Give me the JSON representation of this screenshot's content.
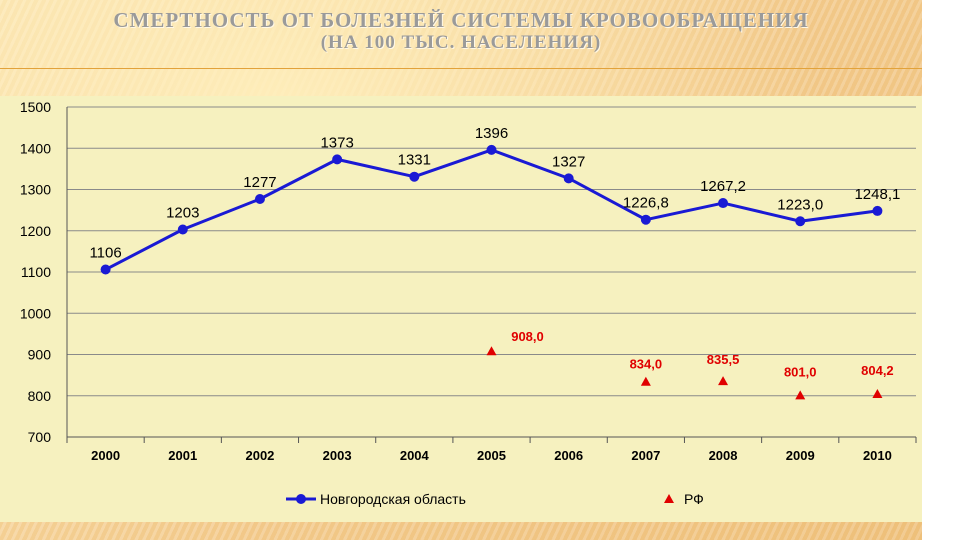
{
  "slide": {
    "title_line1": "СМЕРТНОСТЬ ОТ БОЛЕЗНЕЙ СИСТЕМЫ КРОВООБРАЩЕНИЯ",
    "title_line2": "(НА 100 ТЫС. НАСЕЛЕНИЯ)"
  },
  "chart_data": {
    "type": "line",
    "x": [
      "2000",
      "2001",
      "2002",
      "2003",
      "2004",
      "2005",
      "2006",
      "2007",
      "2008",
      "2009",
      "2010"
    ],
    "ylim": [
      700,
      1500
    ],
    "yticks": [
      "700",
      "800",
      "900",
      "1000",
      "1100",
      "1200",
      "1300",
      "1400",
      "1500"
    ],
    "grid": true,
    "legend_position": "bottom",
    "series": [
      {
        "name": "Новгородская область",
        "marker": "circle",
        "color": "#1a1ad4",
        "values": [
          1106,
          1203,
          1277,
          1373,
          1331,
          1396,
          1327,
          1226.8,
          1267.2,
          1223.0,
          1248.1
        ],
        "labels": [
          "1106",
          "1203",
          "1277",
          "1373",
          "1331",
          "1396",
          "1327",
          "1226,8",
          "1267,2",
          "1223,0",
          "1248,1"
        ]
      },
      {
        "name": "РФ",
        "marker": "triangle",
        "color": "#e00000",
        "values": [
          null,
          null,
          null,
          null,
          null,
          908.0,
          null,
          834.0,
          835.5,
          801.0,
          804.2
        ],
        "labels": [
          null,
          null,
          null,
          null,
          null,
          "908,0",
          null,
          "834,0",
          "835,5",
          "801,0",
          "804,2"
        ]
      }
    ]
  }
}
